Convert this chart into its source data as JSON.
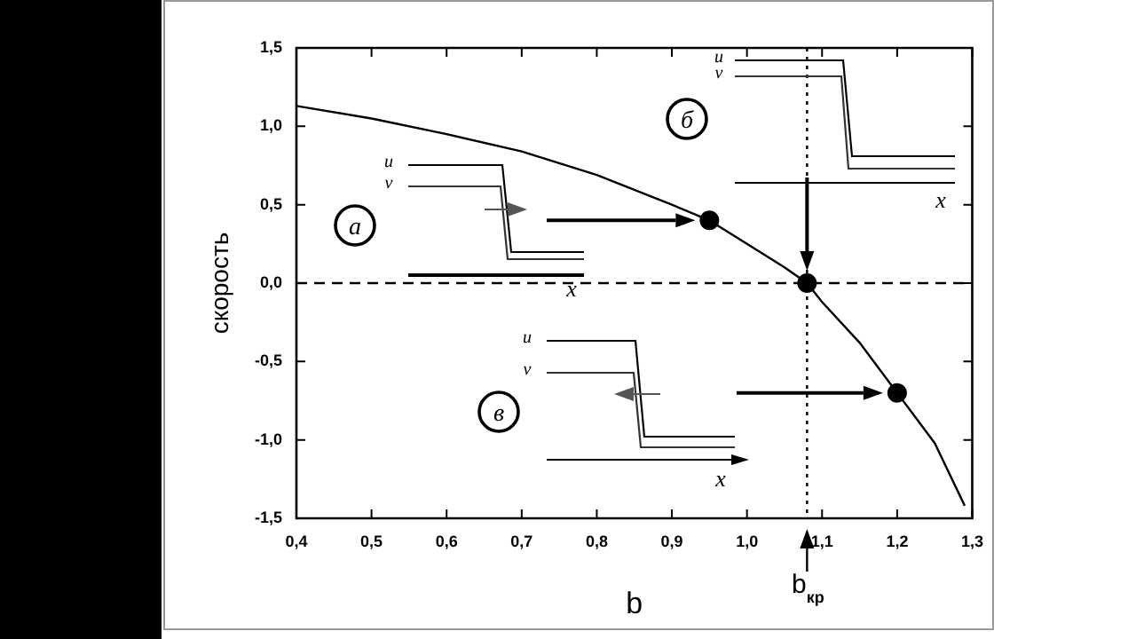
{
  "chart_data": {
    "type": "line",
    "xlabel": "b",
    "ylabel": "скорость",
    "xlim": [
      0.4,
      1.3
    ],
    "ylim": [
      -1.5,
      1.5
    ],
    "xticks": [
      {
        "value": 0.4,
        "label": "0,4"
      },
      {
        "value": 0.5,
        "label": "0,5"
      },
      {
        "value": 0.6,
        "label": "0,6"
      },
      {
        "value": 0.7,
        "label": "0,7"
      },
      {
        "value": 0.8,
        "label": "0,8"
      },
      {
        "value": 0.9,
        "label": "0,9"
      },
      {
        "value": 1.0,
        "label": "1,0"
      },
      {
        "value": 1.1,
        "label": "1,1"
      },
      {
        "value": 1.2,
        "label": "1,2"
      },
      {
        "value": 1.3,
        "label": "1,3"
      }
    ],
    "yticks": [
      {
        "value": -1.5,
        "label": "-1,5"
      },
      {
        "value": -1.0,
        "label": "-1,0"
      },
      {
        "value": -0.5,
        "label": "-0,5"
      },
      {
        "value": 0,
        "label": "0,0"
      },
      {
        "value": 0.5,
        "label": "0,5"
      },
      {
        "value": 1.0,
        "label": "1,0"
      },
      {
        "value": 1.5,
        "label": "1,5"
      }
    ],
    "legend": false,
    "series": [
      {
        "color": "#000000",
        "marker": "none",
        "line_style": "solid",
        "x": [
          0.4,
          0.5,
          0.6,
          0.7,
          0.8,
          0.9,
          0.95,
          1.0,
          1.05,
          1.08,
          1.1,
          1.15,
          1.2,
          1.25,
          1.29
        ],
        "values": [
          1.13,
          1.05,
          0.95,
          0.84,
          0.69,
          0.5,
          0.4,
          0.25,
          0.1,
          0,
          -0.12,
          -0.38,
          -0.7,
          -1.02,
          -1.42
        ]
      },
      {
        "type": "scatter",
        "color": "#000000",
        "marker": "circle",
        "x": [
          0.95,
          1.08,
          1.2
        ],
        "values": [
          0.4,
          0,
          -0.7
        ]
      }
    ],
    "ref_lines": [
      {
        "axis": "y",
        "value": 0,
        "line_style": "dashed"
      },
      {
        "axis": "x",
        "value": 1.08,
        "label": "b$_{кр}$",
        "line_style": "dotted"
      }
    ],
    "annotations": [
      "а",
      "u",
      "v",
      "x",
      "б",
      "u",
      "v",
      "x",
      "в",
      "u",
      "v",
      "x"
    ]
  }
}
